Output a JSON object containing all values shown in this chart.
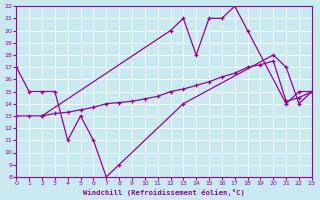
{
  "xlabel": "Windchill (Refroidissement éolien,°C)",
  "xlim": [
    0,
    23
  ],
  "ylim": [
    8,
    22
  ],
  "xticks": [
    0,
    1,
    2,
    3,
    4,
    5,
    6,
    7,
    8,
    9,
    10,
    11,
    12,
    13,
    14,
    15,
    16,
    17,
    18,
    19,
    20,
    21,
    22,
    23
  ],
  "yticks": [
    8,
    9,
    10,
    11,
    12,
    13,
    14,
    15,
    16,
    17,
    18,
    19,
    20,
    21,
    22
  ],
  "background_color": "#c8eaf0",
  "line_color": "#990099",
  "grid_color": "#ffffff",
  "line1_x": [
    0,
    1,
    2,
    3,
    4,
    5,
    6,
    7,
    8,
    13,
    20,
    21,
    22,
    23
  ],
  "line1_y": [
    17,
    15,
    15,
    15,
    11,
    13,
    11,
    8,
    9,
    14,
    18,
    17,
    14,
    15
  ],
  "line2_x": [
    2,
    12,
    13,
    14,
    15,
    16,
    17,
    18,
    21,
    22,
    23
  ],
  "line2_y": [
    13,
    20,
    21,
    18,
    21,
    21,
    22,
    20,
    14,
    15,
    15
  ],
  "line3_x": [
    0,
    1,
    2,
    3,
    4,
    5,
    6,
    7,
    8,
    9,
    10,
    11,
    12,
    13,
    14,
    15,
    16,
    17,
    18,
    19,
    20,
    21,
    22,
    23
  ],
  "line3_y": [
    13,
    13,
    13,
    13.2,
    13.3,
    13.5,
    13.7,
    14,
    14.1,
    14.2,
    14.4,
    14.6,
    15,
    15.2,
    15.5,
    15.8,
    16.2,
    16.5,
    17,
    17.2,
    17.5,
    14.2,
    14.5,
    15
  ]
}
